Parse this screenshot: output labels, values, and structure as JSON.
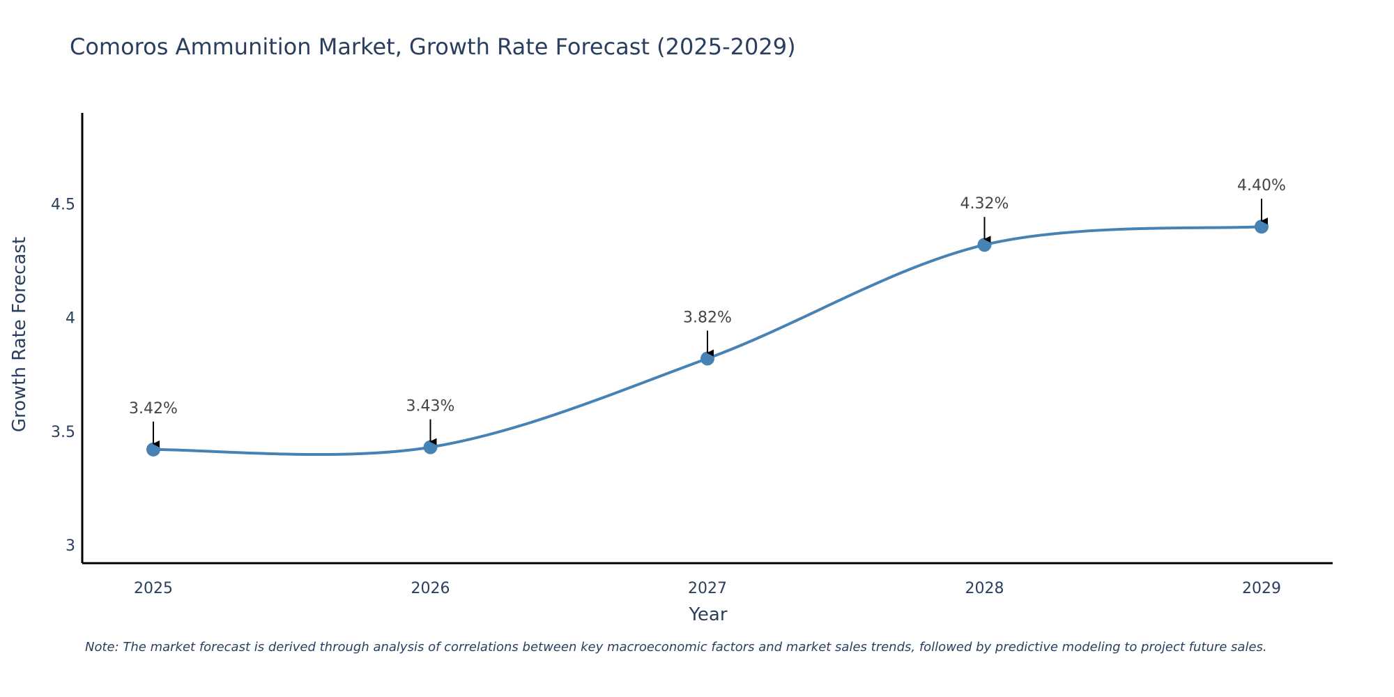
{
  "chart_data": {
    "type": "line",
    "title": "Comoros Ammunition Market, Growth Rate Forecast (2025-2029)",
    "xlabel": "Year",
    "ylabel": "Growth Rate Forecast",
    "categories": [
      "2025",
      "2026",
      "2027",
      "2028",
      "2029"
    ],
    "values": [
      3.42,
      3.43,
      3.82,
      4.32,
      4.4
    ],
    "data_labels": [
      "3.42%",
      "3.43%",
      "3.82%",
      "4.32%",
      "4.40%"
    ],
    "ylim": [
      2.92,
      4.9
    ],
    "yticks": [
      3,
      3.5,
      4,
      4.5
    ],
    "ytick_labels": [
      "3",
      "3.5",
      "4",
      "4.5"
    ],
    "grid": false,
    "line_color": "#4682b4",
    "note": "Note: The market forecast is derived through analysis of correlations between key macroeconomic factors and market sales trends, followed by predictive modeling to project future sales."
  }
}
